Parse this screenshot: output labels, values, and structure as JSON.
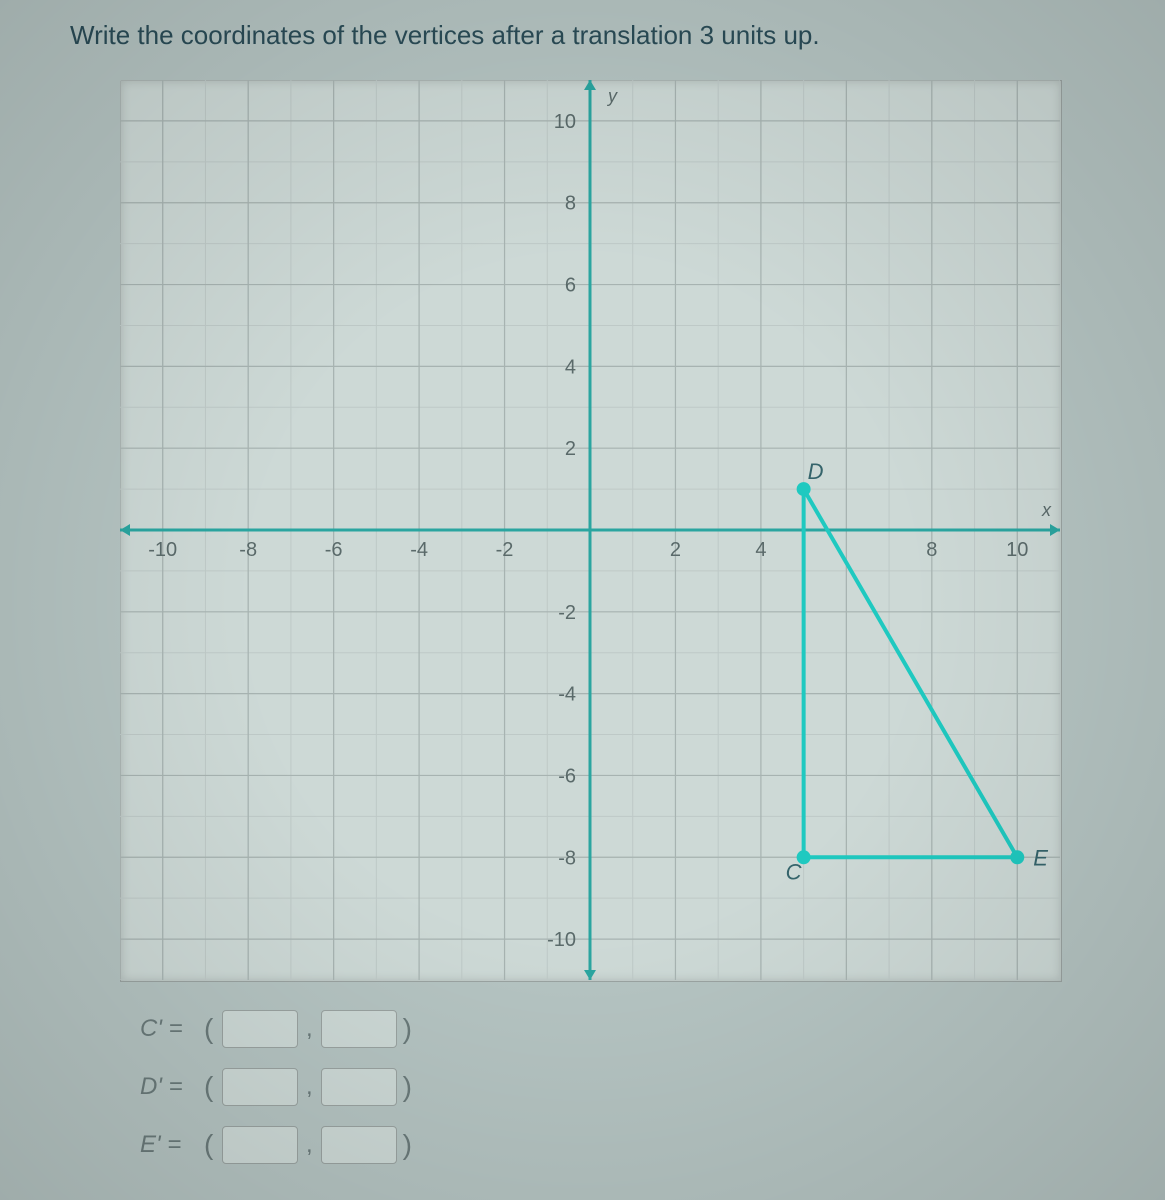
{
  "title": "Write the coordinates of the vertices after a translation 3 units up.",
  "chart": {
    "type": "scatter_with_shape",
    "xlim": [
      -11,
      11
    ],
    "ylim": [
      -11,
      11
    ],
    "xtick_step": 2,
    "ytick_step": 2,
    "x_ticks_shown": [
      -10,
      -8,
      -6,
      -4,
      -2,
      2,
      4,
      8,
      10
    ],
    "y_ticks_shown": [
      10,
      8,
      6,
      4,
      2,
      -2,
      -4,
      -6,
      -8,
      -10
    ],
    "axis_color": "#2aa5a0",
    "grid_color": "#a7b3b1",
    "grid_minor_color": "#bec9c7",
    "background_color": "#cdd9d6",
    "tick_label_color": "#5a6a6a",
    "tick_fontsize": 20,
    "axis_line_width": 3,
    "arrow_size": 10,
    "x_axis_label": "x",
    "y_axis_label": "y",
    "axis_label_color": "#5a6a6a",
    "axis_label_fontsize": 18,
    "triangle": {
      "vertices": {
        "C": [
          5,
          -8
        ],
        "D": [
          5,
          1
        ],
        "E": [
          10,
          -8
        ]
      },
      "stroke_color": "#1fc9c0",
      "stroke_width": 4,
      "point_radius": 7,
      "point_fill": "#1fc9c0",
      "label_color": "#35646b",
      "label_fontsize": 22,
      "label_offsets": {
        "C": [
          -18,
          22
        ],
        "D": [
          4,
          -10
        ],
        "E": [
          16,
          8
        ]
      }
    }
  },
  "answers": {
    "rows": [
      {
        "label": "C' =",
        "x": "",
        "y": ""
      },
      {
        "label": "D' =",
        "x": "",
        "y": ""
      },
      {
        "label": "E' =",
        "x": "",
        "y": ""
      }
    ]
  }
}
